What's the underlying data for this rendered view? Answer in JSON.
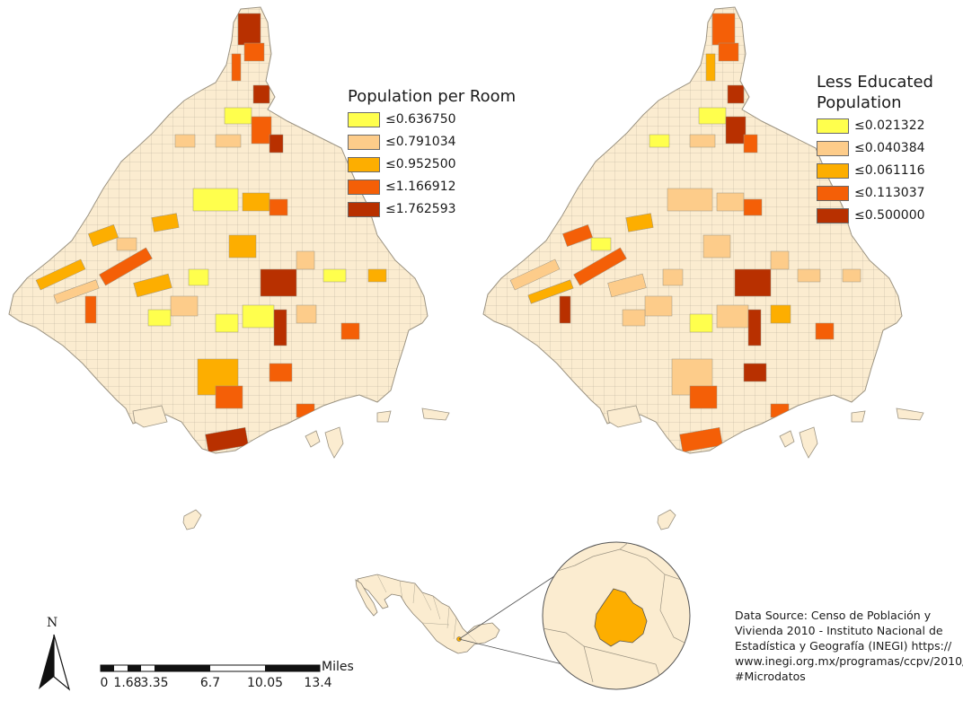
{
  "colors": {
    "base": "#fbecd0",
    "boundary": "#9b9382",
    "class1": "#ffff4d",
    "class2": "#fdcc8a",
    "class3": "#fdae00",
    "class4": "#f45f07",
    "class5": "#b83000"
  },
  "legend_left": {
    "title": "Population per Room",
    "items": [
      {
        "label": "≤0.636750",
        "color": "#ffff4d"
      },
      {
        "label": "≤0.791034",
        "color": "#fdcc8a"
      },
      {
        "label": "≤0.952500",
        "color": "#fdae00"
      },
      {
        "label": "≤1.166912",
        "color": "#f45f07"
      },
      {
        "label": "≤1.762593",
        "color": "#b83000"
      }
    ]
  },
  "legend_right": {
    "title_line1": "Less Educated",
    "title_line2": "Population",
    "items": [
      {
        "label": "≤0.021322",
        "color": "#ffff4d"
      },
      {
        "label": "≤0.040384",
        "color": "#fdcc8a"
      },
      {
        "label": "≤0.061116",
        "color": "#fdae00"
      },
      {
        "label": "≤0.113037",
        "color": "#f45f07"
      },
      {
        "label": "≤0.500000",
        "color": "#b83000"
      }
    ]
  },
  "scale_bar": {
    "units": "Miles",
    "ticks": [
      "0",
      "1.68",
      "3.35",
      "6.7",
      "10.05",
      "13.4"
    ]
  },
  "north_arrow": {
    "label": "N"
  },
  "source": {
    "line1": "Data Source: Censo de Población y",
    "line2": "Vivienda 2010 - Instituto Nacional de",
    "line3": "Estadística y Geografía (INEGI)  https://",
    "line4": "www.inegi.org.mx/programas/ccpv/2010/",
    "line5": "#Microdatos"
  },
  "inset": {
    "country_color": "#fbecd0",
    "highlight_color": "#fdae00"
  }
}
